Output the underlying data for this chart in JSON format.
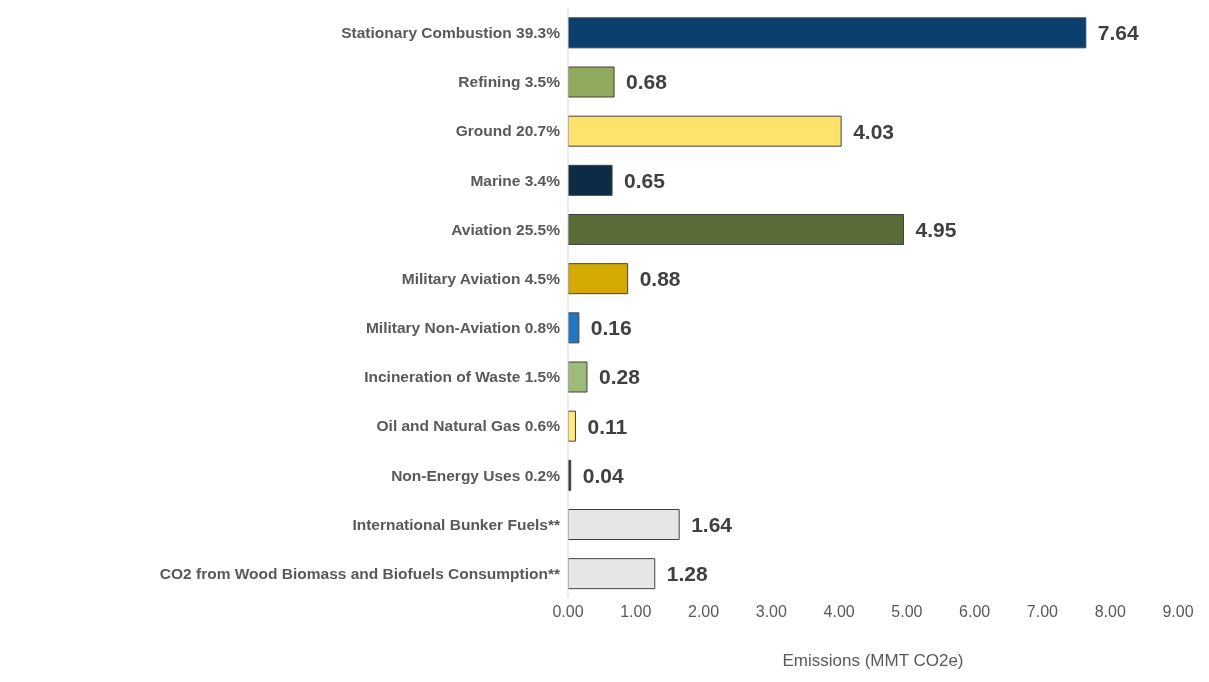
{
  "chart_data": {
    "type": "bar",
    "orientation": "horizontal",
    "xlabel": "Emissions (MMT CO2e)",
    "categories": [
      "Stationary Combustion 39.3%",
      "Refining 3.5%",
      "Ground 20.7%",
      "Marine 3.4%",
      "Aviation 25.5%",
      "Military Aviation 4.5%",
      "Military Non-Aviation 0.8%",
      "Incineration of Waste 1.5%",
      "Oil and Natural Gas 0.6%",
      "Non-Energy Uses 0.2%",
      "International Bunker Fuels**",
      "CO2 from Wood Biomass and Biofuels Consumption**"
    ],
    "values": [
      7.64,
      0.68,
      4.03,
      0.65,
      4.95,
      0.88,
      0.16,
      0.28,
      0.11,
      0.04,
      1.64,
      1.28
    ],
    "colors": [
      "#0b406e",
      "#8faa5c",
      "#ffe26b",
      "#0c2b45",
      "#5b6b35",
      "#d4aa00",
      "#1f78c1",
      "#9fbb7a",
      "#ffe880",
      "#3a3a3a",
      "#e6e6e6",
      "#e6e6e6"
    ],
    "xlim": [
      0,
      9
    ],
    "xticks": [
      {
        "value": 0,
        "label": "0.00"
      },
      {
        "value": 1,
        "label": "1.00"
      },
      {
        "value": 2,
        "label": "2.00"
      },
      {
        "value": 3,
        "label": "3.00"
      },
      {
        "value": 4,
        "label": "4.00"
      },
      {
        "value": 5,
        "label": "5.00"
      },
      {
        "value": 6,
        "label": "6.00"
      },
      {
        "value": 7,
        "label": "7.00"
      },
      {
        "value": 8,
        "label": "8.00"
      },
      {
        "value": 9,
        "label": "9.00"
      }
    ],
    "data_labels": true,
    "grid": false,
    "legend": false
  }
}
